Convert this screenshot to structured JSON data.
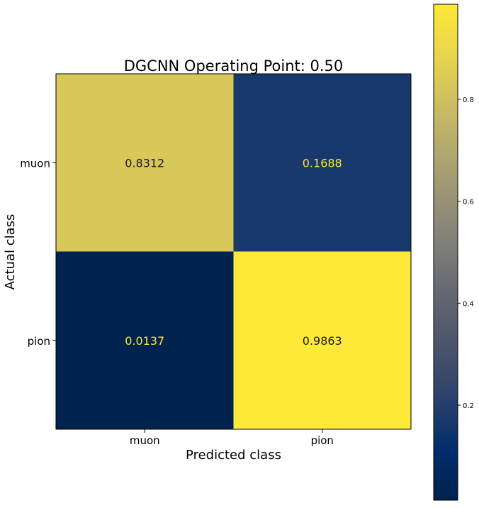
{
  "chart_data": {
    "type": "heatmap",
    "title": "DGCNN Operating Point: 0.50",
    "xlabel": "Predicted class",
    "ylabel": "Actual class",
    "x_categories": [
      "muon",
      "pion"
    ],
    "y_categories": [
      "muon",
      "pion"
    ],
    "values": [
      [
        0.8312,
        0.1688
      ],
      [
        0.0137,
        0.9863
      ]
    ],
    "cell_labels": [
      [
        "0.8312",
        "0.1688"
      ],
      [
        "0.0137",
        "0.9863"
      ]
    ],
    "colormap": "cividis",
    "colorbar": {
      "range": [
        0.0137,
        0.9863
      ],
      "ticks": [
        0.2,
        0.4,
        0.6,
        0.8
      ],
      "tick_labels": [
        "0.2",
        "0.4",
        "0.6",
        "0.8"
      ]
    },
    "grid": false,
    "text_colors": {
      "on_dark": "#fde737",
      "on_light": "#1c1c1c"
    }
  }
}
